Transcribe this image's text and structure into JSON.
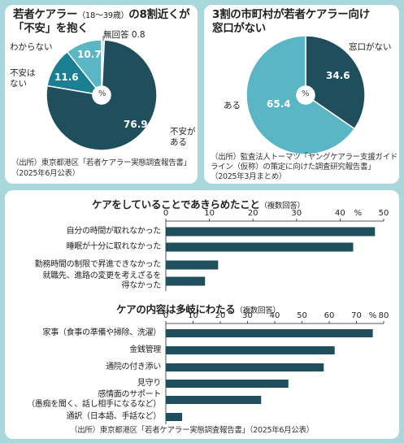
{
  "panel_a": {
    "title_line1": "若者ケアラー",
    "title_small": "（18～39歳）",
    "title_rest": "の8割近くが",
    "title_line2": "「不安」を抱く",
    "labels": {
      "no_answer": "無回答 0.8",
      "unknown": "わからない",
      "not_anxious_1": "不安は",
      "not_anxious_2": "ない",
      "anxious_1": "不安が",
      "anxious_2": "ある"
    },
    "value_labels": {
      "unknown": "10.7",
      "not_anxious": "11.6",
      "anxious": "76.9"
    },
    "center": "%",
    "source_line1": "（出所）東京都港区「若者ケアラー実態調査報告書」",
    "source_line2": "（2025年6月公表）"
  },
  "panel_b": {
    "title_line1": "3割の市町村が若者ケアラー向け",
    "title_line2": "窓口がない",
    "labels": {
      "no_window": "窓口がない",
      "exists": "ある"
    },
    "value_labels": {
      "no_window": "34.6",
      "exists": "65.4"
    },
    "center": "%",
    "source_line1": "（出所）監査法人トーマツ「ヤングケアラー支援ガイド",
    "source_line2": "ライン（仮称）の策定に向けた調査研究報告書」",
    "source_line3": "（2025年3月まとめ）"
  },
  "panel_c": {
    "chart1_title": "ケアをしていることであきらめたこと",
    "chart1_note": "（複数回答）",
    "chart2_title": "ケアの内容は多岐にわたる",
    "chart2_note": "（複数回答）",
    "unit": "%",
    "source": "（出所）東京都港区「若者ケアラー実態調査報告書」（2025年6月公表）"
  },
  "colors": {
    "dark": "#1f4e5c",
    "mid": "#1b7f93",
    "light": "#5ab6c4",
    "pale": "#bfe3e7",
    "bar": "#1f4e5c",
    "background": "#a9d8dc"
  },
  "chart_data": [
    {
      "type": "pie",
      "categories": [
        "不安がある",
        "不安はない",
        "わからない",
        "無回答"
      ],
      "values": [
        76.9,
        11.6,
        10.7,
        0.8
      ],
      "unit": "%"
    },
    {
      "type": "pie",
      "categories": [
        "窓口がない",
        "ある"
      ],
      "values": [
        34.6,
        65.4
      ],
      "unit": "%"
    },
    {
      "type": "bar",
      "orientation": "horizontal",
      "title": "ケアをしていることであきらめたこと",
      "categories": [
        "自分の時間が取れなかった",
        "睡眠が十分に取れなかった",
        "勤務時間の制限で昇進できなかった",
        "就職先、進路の変更を考えざるを得なかった"
      ],
      "category_lines": [
        [
          "自分の時間が取れなかった"
        ],
        [
          "睡眠が十分に取れなかった"
        ],
        [
          "勤務時間の制限で昇進できなかった"
        ],
        [
          "就職先、進路の変更を考えざるを",
          "得なかった"
        ]
      ],
      "values": [
        48,
        43,
        12,
        9
      ],
      "xlim": [
        0,
        50
      ],
      "ticks": [
        0,
        10,
        20,
        30,
        40,
        50
      ],
      "unit": "%"
    },
    {
      "type": "bar",
      "orientation": "horizontal",
      "title": "ケアの内容は多岐にわたる",
      "categories": [
        "家事（食事の準備や掃除、洗濯）",
        "金銭管理",
        "通院の付き添い",
        "見守り",
        "感情面のサポート（愚痴を聞く、話し相手になるなど）",
        "通訳（日本語、手話など）"
      ],
      "category_lines": [
        [
          "家事（食事の準備や掃除、洗濯）"
        ],
        [
          "金銭管理"
        ],
        [
          "通院の付き添い"
        ],
        [
          "見守り"
        ],
        [
          "感情面のサポート",
          "（愚痴を聞く、話し相手になるなど）"
        ],
        [
          "通訳（日本語、手話など）"
        ]
      ],
      "values": [
        76,
        62,
        58,
        45,
        35,
        6
      ],
      "xlim": [
        0,
        80
      ],
      "ticks": [
        0,
        10,
        20,
        30,
        40,
        50,
        60,
        70,
        80
      ],
      "unit": "%"
    }
  ]
}
